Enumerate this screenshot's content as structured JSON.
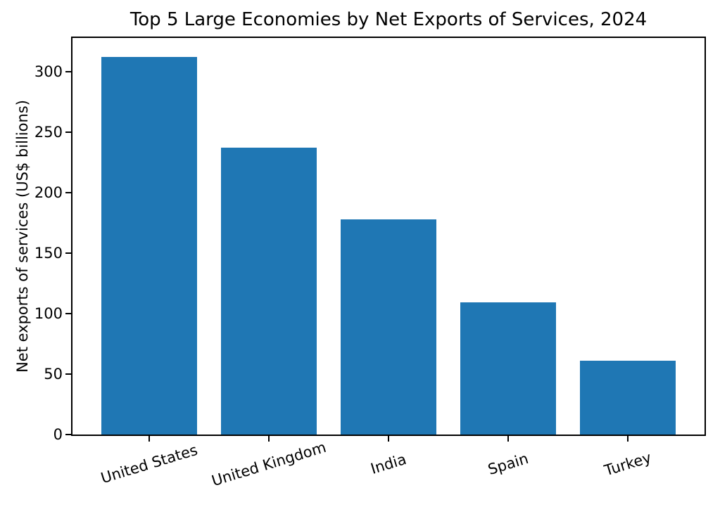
{
  "chart_data": {
    "type": "bar",
    "title": "Top 5 Large Economies by Net Exports of Services, 2024",
    "categories": [
      "United States",
      "United Kingdom",
      "India",
      "Spain",
      "Turkey"
    ],
    "values": [
      312,
      237,
      178,
      109,
      61
    ],
    "xlabel": "",
    "ylabel": "Net exports of services (US$ billions)",
    "yticks": [
      0,
      50,
      100,
      150,
      200,
      250,
      300
    ],
    "ylim": [
      0,
      327.6
    ],
    "bar_color": "#1f77b4",
    "text_color": "#000000",
    "background_color": "#ffffff",
    "grid": false,
    "legend": "none",
    "x_tick_label_rotation_deg": 17
  }
}
